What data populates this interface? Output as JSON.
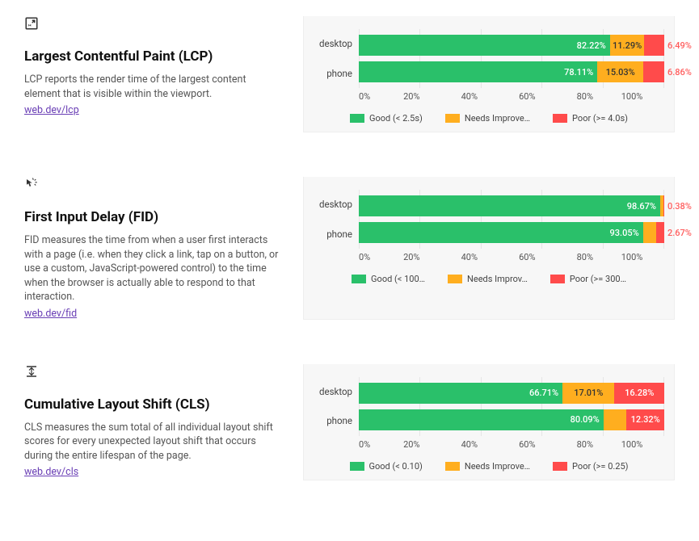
{
  "colors": {
    "good": "#2ac06a",
    "warn": "#ffae1f",
    "poor": "#ff4b4b",
    "poor_text": "#ff5c5c",
    "grid": "#e5e5e5",
    "panel_bg": "#f7f7f7",
    "link": "#6a3fb5"
  },
  "x_ticks": [
    "0%",
    "20%",
    "40%",
    "60%",
    "80%",
    "100%"
  ],
  "metrics": [
    {
      "id": "lcp",
      "title": "Largest Contentful Paint (LCP)",
      "desc": "LCP reports the render time of the largest content element that is visible within the viewport.",
      "link_text": "web.dev/lcp",
      "legend": {
        "good": "Good (< 2.5s)",
        "warn": "Needs Improve…",
        "poor": "Poor (>= 4.0s)"
      },
      "rows": [
        {
          "label": "desktop",
          "good": 82.22,
          "warn": 11.29,
          "poor": 6.49,
          "good_text": "82.22%",
          "warn_text": "11.29%",
          "poor_text": "6.49%",
          "warn_pos": "inside-center",
          "poor_pos": "outside"
        },
        {
          "label": "phone",
          "good": 78.11,
          "warn": 15.03,
          "poor": 6.86,
          "good_text": "78.11%",
          "warn_text": "15.03%",
          "poor_text": "6.86%",
          "warn_pos": "inside-center",
          "poor_pos": "outside"
        }
      ]
    },
    {
      "id": "fid",
      "title": "First Input Delay (FID)",
      "desc": "FID measures the time from when a user first interacts with a page (i.e. when they click a link, tap on a button, or use a custom, JavaScript-powered control) to the time when the browser is actually able to respond to that interaction.",
      "link_text": "web.dev/fid",
      "legend": {
        "good": "Good (< 100…",
        "warn": "Needs Improv…",
        "poor": "Poor (>= 300…"
      },
      "rows": [
        {
          "label": "desktop",
          "good": 98.67,
          "warn": 0.95,
          "poor": 0.38,
          "good_text": "98.67%",
          "warn_text": "",
          "poor_text": "0.38%",
          "warn_pos": "none",
          "poor_pos": "outside"
        },
        {
          "label": "phone",
          "good": 93.05,
          "warn": 4.28,
          "poor": 2.67,
          "good_text": "93.05%",
          "warn_text": "",
          "poor_text": "2.67%",
          "warn_pos": "none",
          "poor_pos": "outside"
        }
      ]
    },
    {
      "id": "cls",
      "title": "Cumulative Layout Shift (CLS)",
      "desc": "CLS measures the sum total of all individual layout shift scores for every unexpected layout shift that occurs during the entire lifespan of the page.",
      "link_text": "web.dev/cls",
      "legend": {
        "good": "Good (< 0.10)",
        "warn": "Needs Improve…",
        "poor": "Poor (>= 0.25)"
      },
      "rows": [
        {
          "label": "desktop",
          "good": 66.71,
          "warn": 17.01,
          "poor": 16.28,
          "good_text": "66.71%",
          "warn_text": "17.01%",
          "poor_text": "16.28%",
          "warn_pos": "inside-center",
          "poor_pos": "inside-center-white"
        },
        {
          "label": "phone",
          "good": 80.09,
          "warn": 7.59,
          "poor": 12.32,
          "good_text": "80.09%",
          "warn_text": "",
          "poor_text": "12.32%",
          "warn_pos": "none",
          "poor_pos": "inside-center-white"
        }
      ]
    }
  ]
}
